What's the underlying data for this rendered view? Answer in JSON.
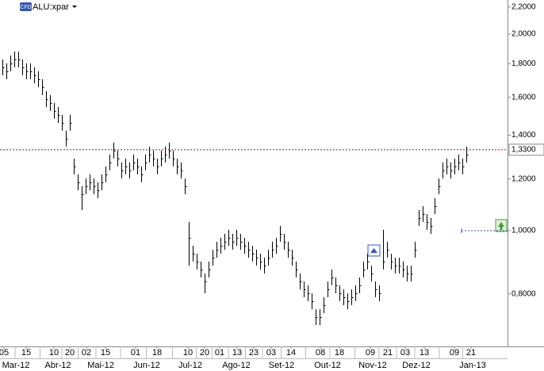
{
  "symbol": {
    "badge": "CFD",
    "name": "ALU:xpar"
  },
  "chart_data": {
    "type": "ohlc",
    "log_scale": true,
    "color": "#000000",
    "high": [
      1.828,
      1.803,
      1.854,
      1.88,
      1.88,
      1.828,
      1.803,
      1.803,
      1.778,
      1.753,
      1.705,
      1.635,
      1.612,
      1.568,
      1.546,
      1.504,
      1.422,
      1.504,
      1.289,
      1.219,
      1.169,
      1.202,
      1.219,
      1.202,
      1.186,
      1.219,
      1.254,
      1.308,
      1.364,
      1.326,
      1.272,
      1.289,
      1.272,
      1.308,
      1.289,
      1.254,
      1.308,
      1.345,
      1.326,
      1.289,
      1.326,
      1.345,
      1.364,
      1.326,
      1.289,
      1.272,
      1.202,
      1.031,
      0.948,
      0.922,
      0.897,
      0.86,
      0.897,
      0.935,
      0.962,
      0.975,
      0.989,
      1.003,
      0.989,
      1.003,
      0.989,
      0.975,
      0.962,
      0.948,
      0.935,
      0.922,
      0.909,
      0.935,
      0.962,
      0.975,
      1.017,
      0.989,
      0.962,
      0.935,
      0.897,
      0.86,
      0.836,
      0.825,
      0.802,
      0.758,
      0.758,
      0.791,
      0.836,
      0.872,
      0.848,
      0.825,
      0.813,
      0.802,
      0.813,
      0.825,
      0.848,
      0.897,
      0.922,
      0.884,
      0.836,
      0.825,
      1.003,
      0.962,
      0.922,
      0.909,
      0.909,
      0.897,
      0.884,
      0.884,
      0.962,
      1.075,
      1.09,
      1.06,
      1.046,
      1.121,
      1.202,
      1.272,
      1.289,
      1.272,
      1.289,
      1.308,
      1.289,
      1.345
    ],
    "low": [
      1.729,
      1.705,
      1.753,
      1.778,
      1.778,
      1.729,
      1.705,
      1.705,
      1.681,
      1.658,
      1.612,
      1.546,
      1.525,
      1.483,
      1.462,
      1.422,
      1.345,
      1.422,
      1.219,
      1.153,
      1.075,
      1.137,
      1.153,
      1.137,
      1.121,
      1.153,
      1.186,
      1.237,
      1.289,
      1.254,
      1.202,
      1.219,
      1.202,
      1.237,
      1.219,
      1.186,
      1.237,
      1.272,
      1.254,
      1.219,
      1.254,
      1.272,
      1.289,
      1.254,
      1.219,
      1.202,
      1.137,
      0.884,
      0.897,
      0.872,
      0.848,
      0.802,
      0.848,
      0.884,
      0.909,
      0.922,
      0.935,
      0.948,
      0.935,
      0.948,
      0.935,
      0.922,
      0.909,
      0.897,
      0.884,
      0.872,
      0.86,
      0.884,
      0.909,
      0.922,
      0.962,
      0.935,
      0.909,
      0.884,
      0.848,
      0.813,
      0.791,
      0.78,
      0.758,
      0.717,
      0.717,
      0.748,
      0.791,
      0.825,
      0.802,
      0.78,
      0.769,
      0.758,
      0.769,
      0.78,
      0.802,
      0.848,
      0.872,
      0.836,
      0.791,
      0.78,
      0.872,
      0.909,
      0.872,
      0.86,
      0.86,
      0.848,
      0.836,
      0.836,
      0.909,
      1.017,
      1.031,
      1.003,
      0.989,
      1.06,
      1.137,
      1.202,
      1.219,
      1.202,
      1.219,
      1.237,
      1.219,
      1.272
    ],
    "close": [
      1.778,
      1.753,
      1.803,
      1.828,
      1.828,
      1.778,
      1.753,
      1.753,
      1.729,
      1.705,
      1.658,
      1.59,
      1.568,
      1.525,
      1.504,
      1.462,
      1.383,
      1.462,
      1.254,
      1.186,
      1.137,
      1.169,
      1.186,
      1.169,
      1.153,
      1.186,
      1.219,
      1.272,
      1.326,
      1.289,
      1.237,
      1.254,
      1.237,
      1.272,
      1.254,
      1.219,
      1.272,
      1.308,
      1.289,
      1.254,
      1.289,
      1.308,
      1.326,
      1.289,
      1.254,
      1.237,
      1.169,
      0.975,
      0.922,
      0.897,
      0.872,
      0.836,
      0.872,
      0.909,
      0.935,
      0.948,
      0.962,
      0.975,
      0.962,
      0.975,
      0.962,
      0.948,
      0.935,
      0.922,
      0.909,
      0.897,
      0.884,
      0.909,
      0.935,
      0.948,
      0.989,
      0.962,
      0.935,
      0.909,
      0.872,
      0.836,
      0.813,
      0.802,
      0.78,
      0.737,
      0.737,
      0.769,
      0.813,
      0.848,
      0.825,
      0.802,
      0.791,
      0.78,
      0.791,
      0.802,
      0.825,
      0.872,
      0.897,
      0.86,
      0.813,
      0.802,
      0.897,
      0.935,
      0.897,
      0.884,
      0.884,
      0.872,
      0.86,
      0.86,
      0.935,
      1.046,
      1.06,
      1.031,
      1.017,
      1.09,
      1.169,
      1.237,
      1.254,
      1.237,
      1.254,
      1.272,
      1.254,
      1.308
    ],
    "xlim": [
      -0.6,
      127.4
    ],
    "ylim": [
      0.665,
      2.254
    ],
    "yticks": [
      {
        "value": 0.8,
        "label": "0,8000"
      },
      {
        "value": 1.0,
        "label": "1,0000"
      },
      {
        "value": 1.2,
        "label": "1,2000"
      },
      {
        "value": 1.4,
        "label": "1,4000"
      },
      {
        "value": 1.6,
        "label": "1,6000"
      },
      {
        "value": 1.8,
        "label": "1,8000"
      },
      {
        "value": 2.0,
        "label": "2,0000"
      },
      {
        "value": 2.2,
        "label": "2,2000"
      }
    ],
    "xticks": [
      {
        "value": 0.4,
        "label": "05"
      },
      {
        "value": 6,
        "label": "15"
      },
      {
        "value": 13,
        "label": "10"
      },
      {
        "value": 17,
        "label": "20"
      },
      {
        "value": 21.2,
        "label": "02"
      },
      {
        "value": 26,
        "label": "15"
      },
      {
        "value": 33.6,
        "label": "01"
      },
      {
        "value": 39,
        "label": "18"
      },
      {
        "value": 46.8,
        "label": "10"
      },
      {
        "value": 51,
        "label": "20"
      },
      {
        "value": 54.8,
        "label": "01"
      },
      {
        "value": 59.2,
        "label": "13"
      },
      {
        "value": 63.4,
        "label": "23"
      },
      {
        "value": 67.8,
        "label": "03"
      },
      {
        "value": 72.8,
        "label": "14"
      },
      {
        "value": 80.2,
        "label": "08"
      },
      {
        "value": 85,
        "label": "18"
      },
      {
        "value": 92.8,
        "label": "09"
      },
      {
        "value": 97.2,
        "label": "21"
      },
      {
        "value": 101.6,
        "label": "03"
      },
      {
        "value": 106.4,
        "label": "13"
      },
      {
        "value": 114,
        "label": "09"
      },
      {
        "value": 118.2,
        "label": "21"
      }
    ],
    "month_ticks": [
      {
        "value": 3.4,
        "label": "Mar-12"
      },
      {
        "value": 14,
        "label": "Abr-12"
      },
      {
        "value": 24.8,
        "label": "Mai-12"
      },
      {
        "value": 36.4,
        "label": "Jun-12"
      },
      {
        "value": 47.4,
        "label": "Jul-12"
      },
      {
        "value": 59,
        "label": "Ago-12"
      },
      {
        "value": 70.4,
        "label": "Set-12"
      },
      {
        "value": 82,
        "label": "Out-12"
      },
      {
        "value": 93.4,
        "label": "Nov-12"
      },
      {
        "value": 104.4,
        "label": "Dez-12"
      },
      {
        "value": 118.6,
        "label": "Jan-13"
      }
    ],
    "price_line": {
      "value": 1.33,
      "label": "1,3300",
      "color": "#cc0000"
    },
    "order_line": {
      "value": 1.0,
      "start": 115.8,
      "color": "#3355cc"
    }
  }
}
